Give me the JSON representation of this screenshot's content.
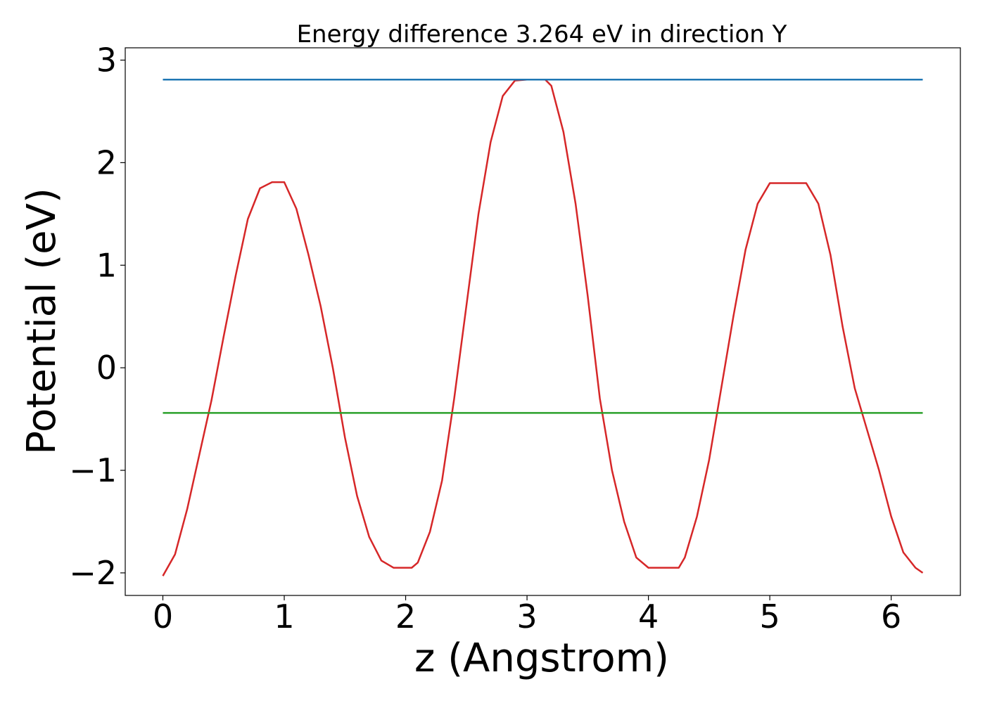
{
  "chart_data": {
    "type": "line",
    "title": "Energy difference 3.264 eV in direction Y",
    "xlabel": "z (Angstrom)",
    "ylabel": "Potential (eV)",
    "xlim": [
      -0.31,
      6.57
    ],
    "ylim": [
      -2.22,
      3.12
    ],
    "xticks": [
      0,
      1,
      2,
      3,
      4,
      5,
      6
    ],
    "yticks": [
      -2,
      -1,
      0,
      1,
      2,
      3
    ],
    "xtick_labels": [
      "0",
      "1",
      "2",
      "3",
      "4",
      "5",
      "6"
    ],
    "ytick_labels": [
      "−2",
      "−1",
      "0",
      "1",
      "2",
      "3"
    ],
    "grid": false,
    "series": [
      {
        "color": "#d62728",
        "x": [
          0.0,
          0.1,
          0.2,
          0.3,
          0.4,
          0.5,
          0.6,
          0.7,
          0.8,
          0.9,
          1.0,
          1.1,
          1.2,
          1.3,
          1.4,
          1.5,
          1.6,
          1.7,
          1.8,
          1.9,
          2.0,
          2.05,
          2.1,
          2.2,
          2.3,
          2.4,
          2.5,
          2.6,
          2.7,
          2.8,
          2.9,
          3.0,
          3.1,
          3.15,
          3.2,
          3.3,
          3.4,
          3.5,
          3.6,
          3.7,
          3.8,
          3.9,
          4.0,
          4.1,
          4.2,
          4.25,
          4.3,
          4.4,
          4.5,
          4.6,
          4.7,
          4.8,
          4.9,
          5.0,
          5.1,
          5.2,
          5.3,
          5.4,
          5.5,
          5.6,
          5.7,
          5.8,
          5.9,
          6.0,
          6.1,
          6.2,
          6.26
        ],
        "y": [
          -2.03,
          -1.82,
          -1.38,
          -0.85,
          -0.32,
          0.3,
          0.9,
          1.45,
          1.75,
          1.81,
          1.81,
          1.55,
          1.1,
          0.6,
          0.0,
          -0.68,
          -1.25,
          -1.65,
          -1.88,
          -1.95,
          -1.95,
          -1.95,
          -1.9,
          -1.6,
          -1.1,
          -0.3,
          0.6,
          1.5,
          2.2,
          2.65,
          2.8,
          2.81,
          2.81,
          2.81,
          2.75,
          2.3,
          1.6,
          0.7,
          -0.3,
          -1.0,
          -1.5,
          -1.85,
          -1.95,
          -1.95,
          -1.95,
          -1.95,
          -1.85,
          -1.45,
          -0.9,
          -0.2,
          0.5,
          1.15,
          1.6,
          1.8,
          1.8,
          1.8,
          1.8,
          1.6,
          1.1,
          0.4,
          -0.2,
          -0.6,
          -1.0,
          -1.45,
          -1.8,
          -1.95,
          -2.0
        ]
      },
      {
        "color": "#1f77b4",
        "x": [
          0.0,
          6.26
        ],
        "y": [
          2.81,
          2.81
        ]
      },
      {
        "color": "#2ca02c",
        "x": [
          0.0,
          6.26
        ],
        "y": [
          -0.44,
          -0.44
        ]
      }
    ]
  }
}
